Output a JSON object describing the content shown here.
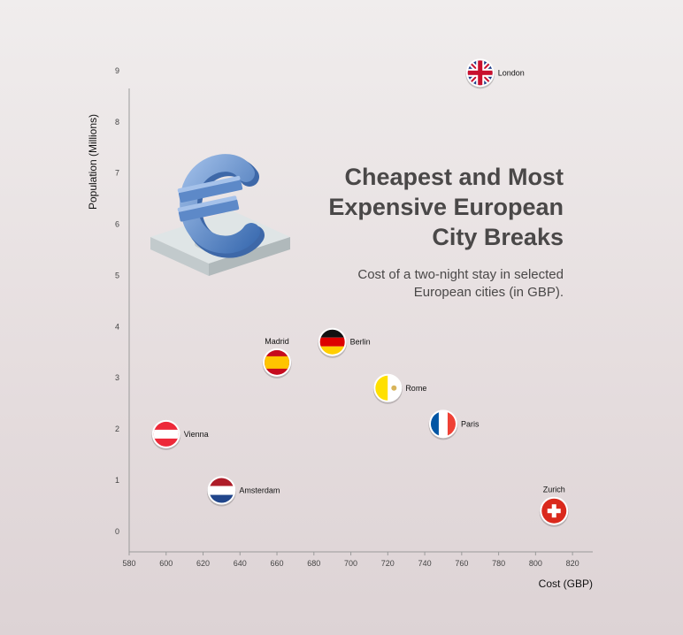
{
  "chart_data": {
    "type": "scatter",
    "title": "Cheapest and Most Expensive European City Breaks",
    "title_lines": [
      "Cheapest and Most",
      "Expensive European",
      "City Breaks"
    ],
    "subtitle_lines": [
      "Cost of a two-night stay in selected",
      "European cities (in GBP)."
    ],
    "xlabel": "Cost (GBP)",
    "ylabel": "Population (Millions)",
    "xlim": [
      580,
      830
    ],
    "ylim": [
      -0.4,
      9.0
    ],
    "xticks": [
      580,
      600,
      620,
      640,
      660,
      680,
      700,
      720,
      740,
      760,
      780,
      800,
      820
    ],
    "yticks": [
      0,
      1,
      2,
      3,
      4,
      5,
      6,
      7,
      8,
      9
    ],
    "grid": false,
    "points": [
      {
        "city": "London",
        "x": 770,
        "y": 8.96,
        "flag": "uk-flag",
        "label_pos": "right"
      },
      {
        "city": "Madrid",
        "x": 660,
        "y": 3.3,
        "flag": "spain-flag",
        "label_pos": "top"
      },
      {
        "city": "Berlin",
        "x": 690,
        "y": 3.7,
        "flag": "germany-flag",
        "label_pos": "right"
      },
      {
        "city": "Rome",
        "x": 720,
        "y": 2.8,
        "flag": "vatican-flag",
        "label_pos": "right"
      },
      {
        "city": "Paris",
        "x": 750,
        "y": 2.1,
        "flag": "france-flag",
        "label_pos": "right"
      },
      {
        "city": "Vienna",
        "x": 600,
        "y": 1.9,
        "flag": "austria-flag",
        "label_pos": "right"
      },
      {
        "city": "Amsterdam",
        "x": 630,
        "y": 0.8,
        "flag": "netherlands-flag",
        "label_pos": "right"
      },
      {
        "city": "Zurich",
        "x": 810,
        "y": 0.4,
        "flag": "switzerland-flag",
        "label_pos": "top"
      }
    ]
  },
  "decor": {
    "illustration": "euro-sign-icon",
    "euro_color": "#6f98d1"
  }
}
